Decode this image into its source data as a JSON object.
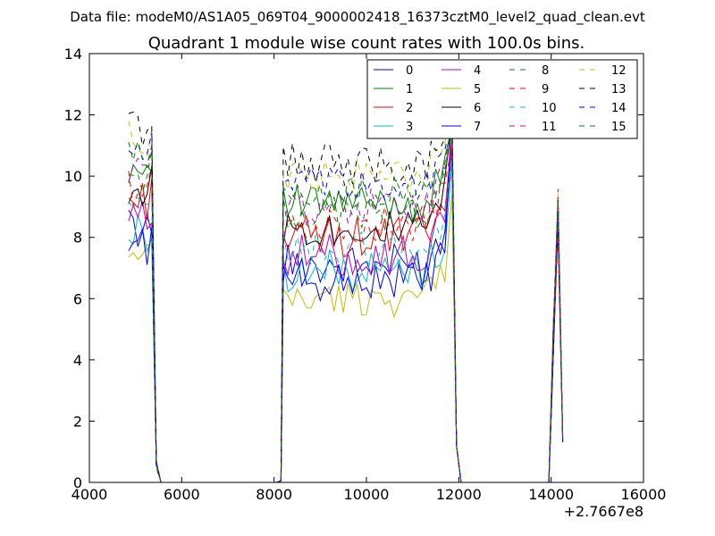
{
  "figure": {
    "suptitle": "Data file: modeM0/AS1A05_069T04_9000002418_16373cztM0_level2_quad_clean.evt",
    "title": "Quadrant 1 module wise count rates with 100.0s bins.",
    "offset_label": "+2.7667e8"
  },
  "chart_data": {
    "type": "line",
    "title": "Quadrant 1 module wise count rates with 100.0s bins.",
    "xlabel": "",
    "ylabel": "",
    "xlim": [
      4000,
      16000
    ],
    "ylim": [
      0,
      14
    ],
    "x_offset": 276670000,
    "xticks": [
      4000,
      6000,
      8000,
      10000,
      12000,
      14000,
      16000
    ],
    "xtick_labels": [
      "4000",
      "6000",
      "8000",
      "10000",
      "12000",
      "14000",
      "16000"
    ],
    "yticks": [
      0,
      2,
      4,
      6,
      8,
      10,
      12,
      14
    ],
    "ytick_labels": [
      "0",
      "2",
      "4",
      "6",
      "8",
      "10",
      "12",
      "14"
    ],
    "grid": false,
    "legend_position": "top-right",
    "legend_columns": 4,
    "segments": [
      {
        "x_start": 4850,
        "x_end": 5450
      },
      {
        "x_start": 8150,
        "x_end": 11950
      },
      {
        "x_start": 14050,
        "x_end": 14250
      }
    ],
    "gap_points": [
      5550,
      5650,
      5750,
      5850,
      5950,
      6050,
      7950,
      8050,
      12050,
      12150,
      12250,
      13750,
      13850,
      13950
    ],
    "series": [
      {
        "name": "0",
        "color": "#0000ff",
        "dash": "solid",
        "level": 7.1,
        "amp": 0.35,
        "seed": 1,
        "peak": 10.8
      },
      {
        "name": "1",
        "color": "#008000",
        "dash": "solid",
        "level": 9.1,
        "amp": 0.3,
        "seed": 2,
        "peak": 11.6
      },
      {
        "name": "2",
        "color": "#ff0000",
        "dash": "solid",
        "level": 8.0,
        "amp": 0.35,
        "seed": 3,
        "peak": 11.2
      },
      {
        "name": "3",
        "color": "#00bfbf",
        "dash": "solid",
        "level": 6.9,
        "amp": 0.35,
        "seed": 4,
        "peak": 10.4
      },
      {
        "name": "4",
        "color": "#bf00bf",
        "dash": "solid",
        "level": 7.4,
        "amp": 0.35,
        "seed": 5,
        "peak": 10.9
      },
      {
        "name": "5",
        "color": "#bfbf00",
        "dash": "solid",
        "level": 6.0,
        "amp": 0.3,
        "seed": 6,
        "peak": 9.4
      },
      {
        "name": "6",
        "color": "#000000",
        "dash": "solid",
        "level": 8.3,
        "amp": 0.3,
        "seed": 7,
        "peak": 11.8
      },
      {
        "name": "7",
        "color": "#0000ff",
        "dash": "solid",
        "level": 6.6,
        "amp": 0.35,
        "seed": 8,
        "peak": 12.2
      },
      {
        "name": "8",
        "color": "#008000",
        "dash": "dashed",
        "level": 8.8,
        "amp": 0.3,
        "seed": 9,
        "peak": 11.4
      },
      {
        "name": "9",
        "color": "#ff0000",
        "dash": "dashed",
        "level": 8.4,
        "amp": 0.3,
        "seed": 10,
        "peak": 11.0
      },
      {
        "name": "10",
        "color": "#00bfbf",
        "dash": "dashed",
        "level": 7.6,
        "amp": 0.3,
        "seed": 11,
        "peak": 10.6
      },
      {
        "name": "11",
        "color": "#bf00bf",
        "dash": "dashed",
        "level": 9.0,
        "amp": 0.3,
        "seed": 12,
        "peak": 11.5
      },
      {
        "name": "12",
        "color": "#bfbf00",
        "dash": "dashed",
        "level": 10.0,
        "amp": 0.3,
        "seed": 13,
        "peak": 12.9
      },
      {
        "name": "13",
        "color": "#000000",
        "dash": "dashed",
        "level": 10.4,
        "amp": 0.35,
        "seed": 14,
        "peak": 12.5
      },
      {
        "name": "14",
        "color": "#0000ff",
        "dash": "dashed",
        "level": 9.7,
        "amp": 0.3,
        "seed": 15,
        "peak": 11.9
      },
      {
        "name": "15",
        "color": "#008000",
        "dash": "dashed",
        "level": 9.4,
        "amp": 0.3,
        "seed": 16,
        "peak": 11.7
      }
    ]
  }
}
